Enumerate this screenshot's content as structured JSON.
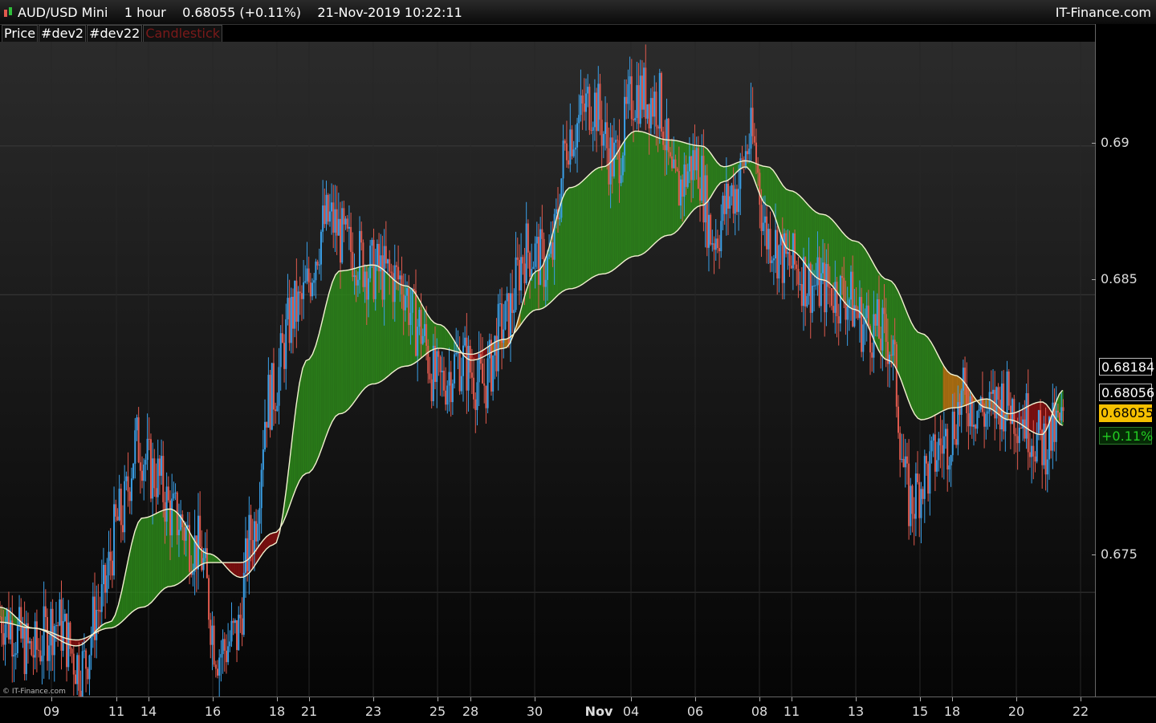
{
  "window": {
    "title": "AUD/USD Mini    1 hour    0.68055 (+0.11%)    21-Nov-2019 10:22:11",
    "brand": "IT-Finance.com"
  },
  "tabs": [
    "Price",
    "#dev2",
    "#dev22",
    "Candlestick"
  ],
  "copyright": "© IT-Finance.com",
  "colors": {
    "background_top": "#2b2b2b",
    "background_bottom": "#050505",
    "candle_up": "#3aa0e8",
    "candle_down": "#e05a4e",
    "ribbon_bull": "#2d8a1a",
    "ribbon_bear": "#8a1010",
    "ribbon_transition": "#c07a10",
    "ma_line": "#f2f2d0",
    "last_price_bg": "#f5c000",
    "change_color": "#22cc22"
  },
  "price_axis": {
    "ticks": [
      "0.69",
      "0.685",
      "0.675"
    ],
    "labels": {
      "upper": "0.68184",
      "lower": "0.68056",
      "last": "0.68055",
      "change": "+0.11%"
    }
  },
  "time_axis": {
    "labels": [
      "09",
      "11",
      "14",
      "16",
      "18",
      "21",
      "23",
      "25",
      "28",
      "30",
      "Nov",
      "04",
      "06",
      "08",
      "11",
      "13",
      "15",
      "18",
      "20",
      "22"
    ]
  },
  "chart_data": {
    "type": "candlestick",
    "symbol": "AUD/USD Mini",
    "timeframe": "1 hour",
    "last_price": 0.68055,
    "change_pct": 0.11,
    "ylim": [
      0.6715,
      0.6935
    ],
    "y_ticks": [
      0.675,
      0.685,
      0.69
    ],
    "ma_fast_anchor_path": [
      [
        0,
        0.6745
      ],
      [
        0.03,
        0.6738
      ],
      [
        0.07,
        0.6732
      ],
      [
        0.1,
        0.674
      ],
      [
        0.13,
        0.6775
      ],
      [
        0.155,
        0.6778
      ],
      [
        0.19,
        0.6763
      ],
      [
        0.22,
        0.6755
      ],
      [
        0.25,
        0.6766
      ],
      [
        0.28,
        0.6828
      ],
      [
        0.31,
        0.6858
      ],
      [
        0.34,
        0.686
      ],
      [
        0.37,
        0.6853
      ],
      [
        0.4,
        0.684
      ],
      [
        0.43,
        0.6828
      ],
      [
        0.46,
        0.6832
      ],
      [
        0.49,
        0.6858
      ],
      [
        0.52,
        0.6886
      ],
      [
        0.55,
        0.6893
      ],
      [
        0.58,
        0.6905
      ],
      [
        0.61,
        0.6902
      ],
      [
        0.64,
        0.69
      ],
      [
        0.66,
        0.6893
      ],
      [
        0.68,
        0.6895
      ],
      [
        0.7,
        0.6893
      ],
      [
        0.72,
        0.6885
      ],
      [
        0.75,
        0.6877
      ],
      [
        0.78,
        0.6868
      ],
      [
        0.81,
        0.6855
      ],
      [
        0.84,
        0.6837
      ],
      [
        0.87,
        0.6823
      ],
      [
        0.9,
        0.6812
      ],
      [
        0.92,
        0.6808
      ],
      [
        0.95,
        0.6803
      ],
      [
        0.97,
        0.6818
      ]
    ],
    "ma_slow_anchor_path": [
      [
        0,
        0.674
      ],
      [
        0.03,
        0.6738
      ],
      [
        0.07,
        0.6734
      ],
      [
        0.1,
        0.6738
      ],
      [
        0.13,
        0.6745
      ],
      [
        0.155,
        0.6752
      ],
      [
        0.19,
        0.676
      ],
      [
        0.22,
        0.676
      ],
      [
        0.25,
        0.677
      ],
      [
        0.28,
        0.679
      ],
      [
        0.31,
        0.681
      ],
      [
        0.34,
        0.682
      ],
      [
        0.37,
        0.6826
      ],
      [
        0.4,
        0.6832
      ],
      [
        0.43,
        0.683
      ],
      [
        0.46,
        0.6835
      ],
      [
        0.49,
        0.6845
      ],
      [
        0.52,
        0.6852
      ],
      [
        0.55,
        0.6857
      ],
      [
        0.58,
        0.6863
      ],
      [
        0.61,
        0.687
      ],
      [
        0.64,
        0.688
      ],
      [
        0.66,
        0.6888
      ],
      [
        0.68,
        0.6893
      ],
      [
        0.7,
        0.688
      ],
      [
        0.72,
        0.6865
      ],
      [
        0.75,
        0.6855
      ],
      [
        0.78,
        0.6845
      ],
      [
        0.81,
        0.6828
      ],
      [
        0.84,
        0.6808
      ],
      [
        0.87,
        0.6812
      ],
      [
        0.9,
        0.6815
      ],
      [
        0.92,
        0.681
      ],
      [
        0.95,
        0.6814
      ],
      [
        0.97,
        0.6806
      ]
    ],
    "price_anchor_path": [
      [
        0,
        0.6742
      ],
      [
        0.03,
        0.673
      ],
      [
        0.05,
        0.674
      ],
      [
        0.075,
        0.6725
      ],
      [
        0.09,
        0.6745
      ],
      [
        0.11,
        0.6775
      ],
      [
        0.125,
        0.68
      ],
      [
        0.14,
        0.679
      ],
      [
        0.16,
        0.6775
      ],
      [
        0.18,
        0.6765
      ],
      [
        0.2,
        0.673
      ],
      [
        0.215,
        0.6735
      ],
      [
        0.23,
        0.677
      ],
      [
        0.245,
        0.6815
      ],
      [
        0.27,
        0.6845
      ],
      [
        0.3,
        0.6875
      ],
      [
        0.32,
        0.6865
      ],
      [
        0.34,
        0.6858
      ],
      [
        0.365,
        0.6855
      ],
      [
        0.38,
        0.684
      ],
      [
        0.4,
        0.682
      ],
      [
        0.42,
        0.6828
      ],
      [
        0.44,
        0.682
      ],
      [
        0.46,
        0.684
      ],
      [
        0.48,
        0.6865
      ],
      [
        0.5,
        0.686
      ],
      [
        0.52,
        0.6905
      ],
      [
        0.54,
        0.6915
      ],
      [
        0.56,
        0.6895
      ],
      [
        0.58,
        0.6918
      ],
      [
        0.6,
        0.6915
      ],
      [
        0.615,
        0.6885
      ],
      [
        0.635,
        0.6895
      ],
      [
        0.65,
        0.687
      ],
      [
        0.67,
        0.6885
      ],
      [
        0.685,
        0.6902
      ],
      [
        0.7,
        0.687
      ],
      [
        0.72,
        0.686
      ],
      [
        0.745,
        0.6853
      ],
      [
        0.77,
        0.685
      ],
      [
        0.79,
        0.684
      ],
      [
        0.81,
        0.6835
      ],
      [
        0.83,
        0.678
      ],
      [
        0.845,
        0.679
      ],
      [
        0.86,
        0.68
      ],
      [
        0.88,
        0.6815
      ],
      [
        0.9,
        0.681
      ],
      [
        0.915,
        0.6815
      ],
      [
        0.93,
        0.681
      ],
      [
        0.95,
        0.68
      ],
      [
        0.97,
        0.6806
      ]
    ]
  }
}
